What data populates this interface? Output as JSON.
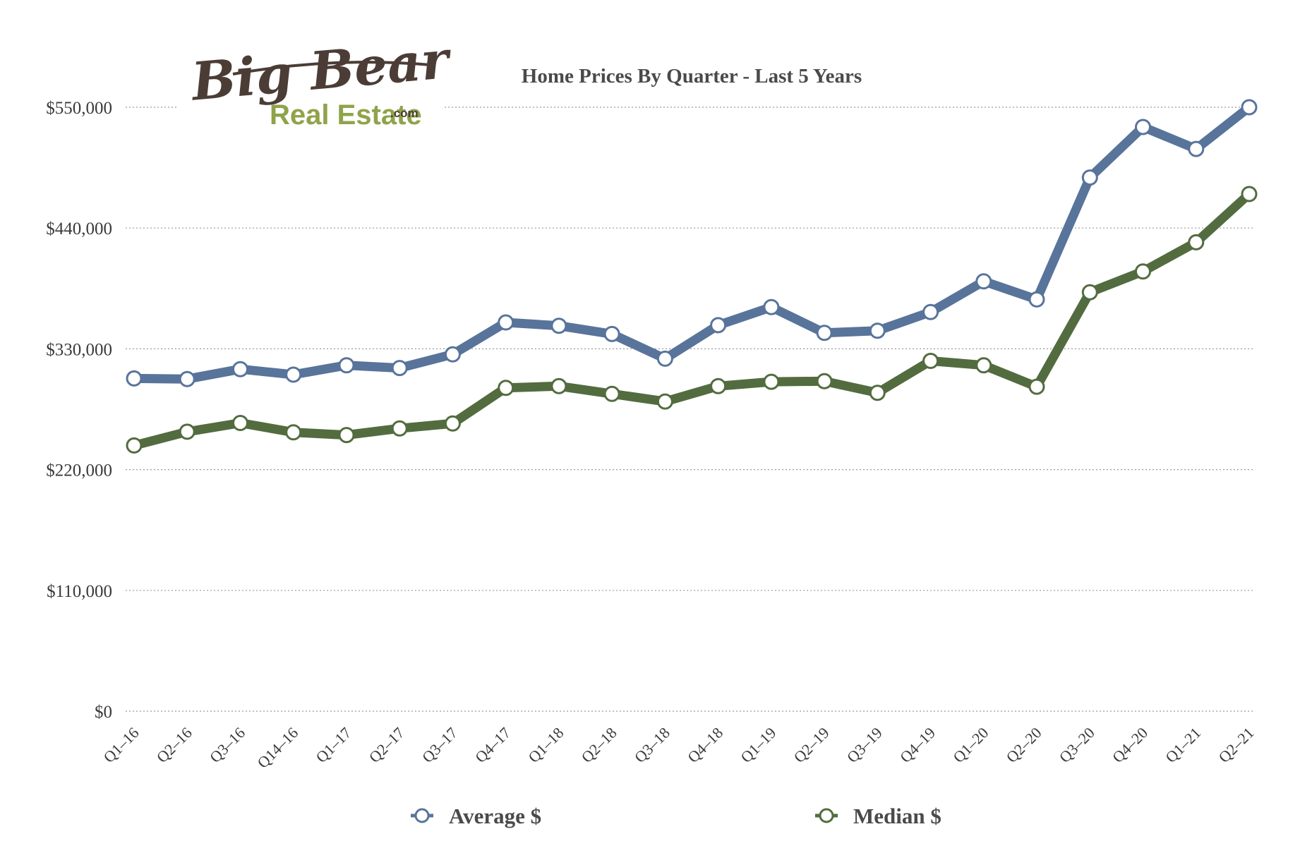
{
  "logo": {
    "line1": "Big Bear",
    "line2": "Real Estate",
    "suffix": ".com"
  },
  "colors": {
    "average": "#58749b",
    "median": "#536c3f",
    "marker_fill": "#ffffff",
    "grid": "#9a9a9a",
    "text": "#3a3a3a"
  },
  "chart_data": {
    "type": "line",
    "title": "Home Prices By Quarter - Last 5 Years",
    "xlabel": "",
    "ylabel": "",
    "ylim": [
      0,
      550000
    ],
    "yticks": [
      0,
      110000,
      220000,
      330000,
      440000,
      550000
    ],
    "ytick_labels": [
      "$0",
      "$110,000",
      "$220,000",
      "$330,000",
      "$440,000",
      "$550,000"
    ],
    "grid": true,
    "legend_position": "bottom",
    "categories": [
      "Q1-16",
      "Q2-16",
      "Q3-16",
      "Q14-16",
      "Q1-17",
      "Q2-17",
      "Q3-17",
      "Q4-17",
      "Q1-18",
      "Q2-18",
      "Q3-18",
      "Q4-18",
      "Q1-19",
      "Q2-19",
      "Q3-19",
      "Q4-19",
      "Q1-20",
      "Q2-20",
      "Q3-20",
      "Q4-20",
      "Q1-21",
      "Q2-21"
    ],
    "series": [
      {
        "name": "Average $",
        "values": [
          303000,
          302500,
          311500,
          306500,
          315000,
          312500,
          325000,
          354000,
          351000,
          343500,
          321000,
          351500,
          368000,
          344500,
          346500,
          363500,
          391500,
          375000,
          486000,
          532000,
          512000,
          550000
        ]
      },
      {
        "name": "Median $",
        "values": [
          242000,
          254500,
          262500,
          254000,
          251500,
          257500,
          262000,
          294500,
          296000,
          289000,
          282000,
          296000,
          300000,
          300500,
          290000,
          319000,
          315000,
          295500,
          381500,
          400500,
          427000,
          471000
        ]
      }
    ]
  }
}
